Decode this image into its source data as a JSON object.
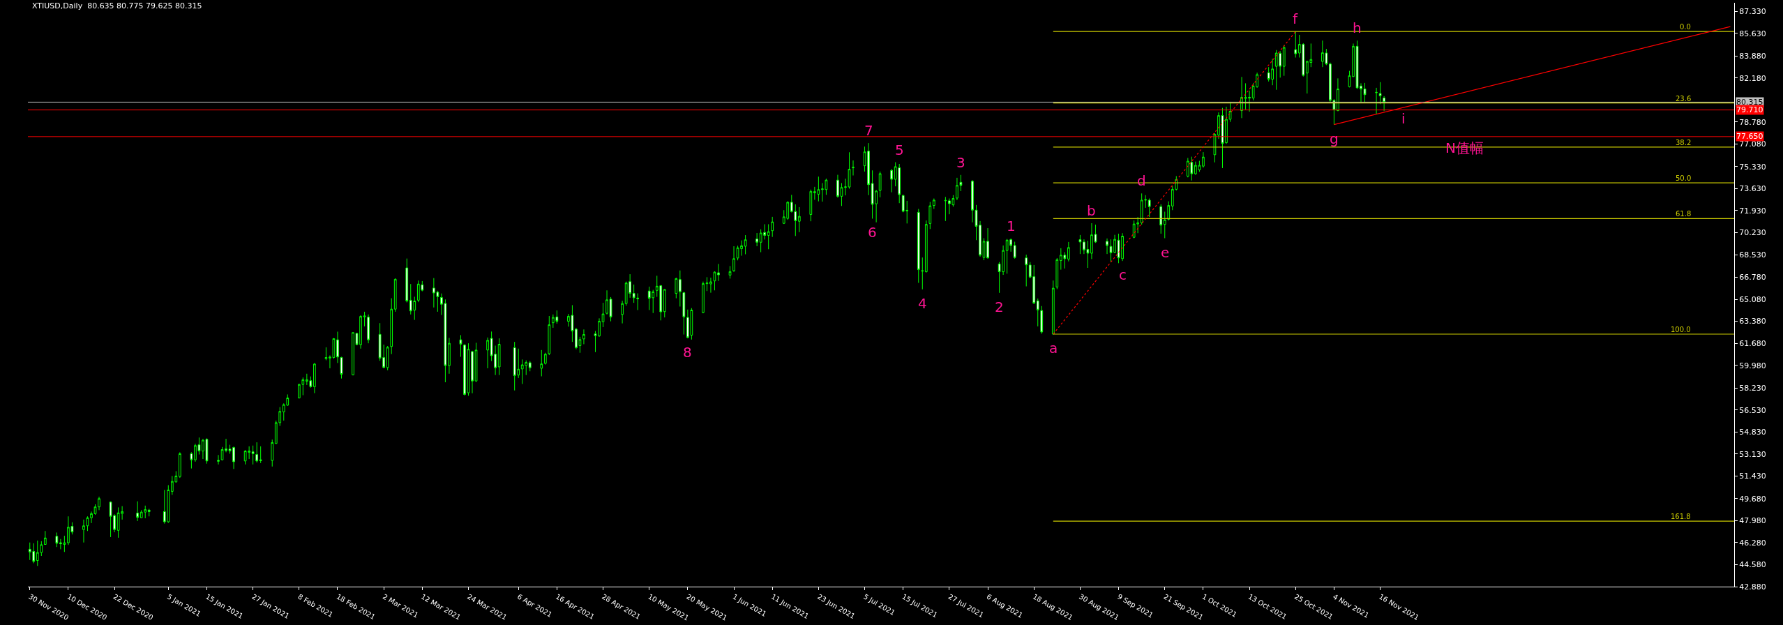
{
  "chart_data": {
    "type": "candlestick",
    "title": "XTIUSD,Daily  80.635 80.775 79.625 80.315",
    "color": "#00ff00",
    "x": [
      "2020-11-30",
      "2020-12-01",
      "2020-12-02",
      "2020-12-03",
      "2020-12-04",
      "2020-12-07",
      "2020-12-08",
      "2020-12-09",
      "2020-12-10",
      "2020-12-11",
      "2020-12-14",
      "2020-12-15",
      "2020-12-16",
      "2020-12-17",
      "2020-12-18",
      "2020-12-21",
      "2020-12-22",
      "2020-12-23",
      "2020-12-24",
      "2020-12-28",
      "2020-12-29",
      "2020-12-30",
      "2020-12-31",
      "2021-01-04",
      "2021-01-05",
      "2021-01-06",
      "2021-01-07",
      "2021-01-08",
      "2021-01-11",
      "2021-01-12",
      "2021-01-13",
      "2021-01-14",
      "2021-01-15",
      "2021-01-18",
      "2021-01-19",
      "2021-01-20",
      "2021-01-21",
      "2021-01-22",
      "2021-01-25",
      "2021-01-26",
      "2021-01-27",
      "2021-01-28",
      "2021-01-29",
      "2021-02-01",
      "2021-02-02",
      "2021-02-03",
      "2021-02-04",
      "2021-02-05",
      "2021-02-08",
      "2021-02-09",
      "2021-02-10",
      "2021-02-11",
      "2021-02-12",
      "2021-02-15",
      "2021-02-16",
      "2021-02-17",
      "2021-02-18",
      "2021-02-19",
      "2021-02-22",
      "2021-02-23",
      "2021-02-24",
      "2021-02-25",
      "2021-02-26",
      "2021-03-01",
      "2021-03-02",
      "2021-03-03",
      "2021-03-04",
      "2021-03-05",
      "2021-03-08",
      "2021-03-09",
      "2021-03-10",
      "2021-03-11",
      "2021-03-12",
      "2021-03-15",
      "2021-03-16",
      "2021-03-17",
      "2021-03-18",
      "2021-03-19",
      "2021-03-22",
      "2021-03-23",
      "2021-03-24",
      "2021-03-25",
      "2021-03-26",
      "2021-03-29",
      "2021-03-30",
      "2021-03-31",
      "2021-04-01",
      "2021-04-05",
      "2021-04-06",
      "2021-04-07",
      "2021-04-08",
      "2021-04-09",
      "2021-04-12",
      "2021-04-13",
      "2021-04-14",
      "2021-04-15",
      "2021-04-16",
      "2021-04-19",
      "2021-04-20",
      "2021-04-21",
      "2021-04-22",
      "2021-04-23",
      "2021-04-26",
      "2021-04-27",
      "2021-04-28",
      "2021-04-29",
      "2021-04-30",
      "2021-05-03",
      "2021-05-04",
      "2021-05-05",
      "2021-05-06",
      "2021-05-07",
      "2021-05-10",
      "2021-05-11",
      "2021-05-12",
      "2021-05-13",
      "2021-05-14",
      "2021-05-17",
      "2021-05-18",
      "2021-05-19",
      "2021-05-20",
      "2021-05-21",
      "2021-05-24",
      "2021-05-25",
      "2021-05-26",
      "2021-05-27",
      "2021-05-28",
      "2021-05-31",
      "2021-06-01",
      "2021-06-02",
      "2021-06-03",
      "2021-06-04",
      "2021-06-07",
      "2021-06-08",
      "2021-06-09",
      "2021-06-10",
      "2021-06-11",
      "2021-06-14",
      "2021-06-15",
      "2021-06-16",
      "2021-06-17",
      "2021-06-18",
      "2021-06-21",
      "2021-06-22",
      "2021-06-23",
      "2021-06-24",
      "2021-06-25",
      "2021-06-28",
      "2021-06-29",
      "2021-06-30",
      "2021-07-01",
      "2021-07-02",
      "2021-07-05",
      "2021-07-06",
      "2021-07-07",
      "2021-07-08",
      "2021-07-09",
      "2021-07-12",
      "2021-07-13",
      "2021-07-14",
      "2021-07-15",
      "2021-07-16",
      "2021-07-19",
      "2021-07-20",
      "2021-07-21",
      "2021-07-22",
      "2021-07-23",
      "2021-07-26",
      "2021-07-27",
      "2021-07-28",
      "2021-07-29",
      "2021-07-30",
      "2021-08-02",
      "2021-08-03",
      "2021-08-04",
      "2021-08-05",
      "2021-08-06",
      "2021-08-09",
      "2021-08-10",
      "2021-08-11",
      "2021-08-12",
      "2021-08-13",
      "2021-08-16",
      "2021-08-17",
      "2021-08-18",
      "2021-08-19",
      "2021-08-20",
      "2021-08-23",
      "2021-08-24",
      "2021-08-25",
      "2021-08-26",
      "2021-08-27",
      "2021-08-30",
      "2021-08-31",
      "2021-09-01",
      "2021-09-02",
      "2021-09-03",
      "2021-09-06",
      "2021-09-07",
      "2021-09-08",
      "2021-09-09",
      "2021-09-10",
      "2021-09-13",
      "2021-09-14",
      "2021-09-15",
      "2021-09-16",
      "2021-09-17",
      "2021-09-20",
      "2021-09-21",
      "2021-09-22",
      "2021-09-23",
      "2021-09-24",
      "2021-09-27",
      "2021-09-28",
      "2021-09-29",
      "2021-09-30",
      "2021-10-01",
      "2021-10-04",
      "2021-10-05",
      "2021-10-06",
      "2021-10-07",
      "2021-10-08",
      "2021-10-11",
      "2021-10-12",
      "2021-10-13",
      "2021-10-14",
      "2021-10-15",
      "2021-10-18",
      "2021-10-19",
      "2021-10-20",
      "2021-10-21",
      "2021-10-22",
      "2021-10-25",
      "2021-10-26",
      "2021-10-27",
      "2021-10-28",
      "2021-10-29",
      "2021-11-01",
      "2021-11-02",
      "2021-11-03",
      "2021-11-04",
      "2021-11-05",
      "2021-11-08",
      "2021-11-09",
      "2021-11-10",
      "2021-11-11",
      "2021-11-12",
      "2021-11-15",
      "2021-11-16",
      "2021-11-17"
    ],
    "ohlc": [
      [
        45.77,
        46.29,
        44.94,
        45.56
      ],
      [
        45.6,
        46.23,
        44.69,
        44.83
      ],
      [
        44.9,
        46.44,
        44.48,
        45.52
      ],
      [
        45.52,
        46.39,
        45.25,
        46.12
      ],
      [
        46.14,
        47.18,
        46.14,
        46.64
      ],
      [
        46.77,
        47.06,
        45.94,
        46.23
      ],
      [
        46.27,
        46.56,
        45.77,
        46.19
      ],
      [
        46.14,
        46.81,
        45.56,
        46.27
      ],
      [
        46.27,
        48.31,
        46.1,
        47.47
      ],
      [
        47.54,
        47.85,
        46.91,
        47.1
      ],
      [
        47.29,
        48.06,
        46.29,
        47.58
      ],
      [
        47.58,
        48.31,
        47.18,
        48.2
      ],
      [
        48.2,
        48.68,
        47.79,
        48.52
      ],
      [
        48.52,
        49.24,
        48.43,
        49.04
      ],
      [
        49.04,
        49.83,
        48.79,
        49.68
      ],
      [
        49.41,
        49.47,
        46.71,
        48.31
      ],
      [
        48.37,
        48.47,
        47.08,
        47.29
      ],
      [
        47.23,
        49.0,
        46.66,
        48.58
      ],
      [
        48.52,
        49.1,
        48.06,
        48.68
      ],
      [
        48.56,
        49.47,
        47.95,
        48.23
      ],
      [
        48.2,
        48.79,
        48.16,
        48.64
      ],
      [
        48.64,
        49.14,
        48.16,
        48.83
      ],
      [
        48.79,
        48.89,
        48.31,
        48.68
      ],
      [
        48.68,
        50.35,
        47.75,
        47.89
      ],
      [
        47.89,
        50.72,
        47.81,
        50.35
      ],
      [
        50.24,
        51.43,
        49.97,
        51.01
      ],
      [
        50.97,
        51.8,
        50.93,
        51.43
      ],
      [
        51.39,
        53.26,
        51.28,
        53.15
      ],
      [
        53.15,
        53.26,
        52.01,
        52.68
      ],
      [
        52.68,
        53.92,
        52.53,
        53.78
      ],
      [
        53.84,
        54.4,
        53.09,
        53.36
      ],
      [
        53.36,
        54.3,
        52.74,
        54.19
      ],
      [
        54.26,
        54.34,
        52.38,
        52.59
      ],
      [
        52.64,
        53.05,
        52.32,
        52.57
      ],
      [
        52.68,
        53.67,
        52.63,
        53.47
      ],
      [
        53.53,
        54.3,
        53.26,
        53.4
      ],
      [
        53.51,
        53.84,
        53.15,
        53.36
      ],
      [
        53.63,
        53.7,
        51.97,
        52.53
      ],
      [
        52.59,
        53.42,
        52.32,
        53.36
      ],
      [
        53.26,
        53.72,
        52.74,
        53.36
      ],
      [
        53.3,
        53.78,
        52.32,
        53.15
      ],
      [
        53.09,
        54.03,
        52.47,
        52.59
      ],
      [
        52.68,
        53.72,
        52.43,
        52.61
      ],
      [
        52.63,
        54.24,
        52.16,
        54.01
      ],
      [
        53.94,
        55.71,
        53.92,
        55.55
      ],
      [
        55.55,
        56.75,
        55.3,
        56.42
      ],
      [
        56.38,
        57.04,
        55.71,
        56.94
      ],
      [
        56.9,
        57.73,
        56.85,
        57.46
      ],
      [
        57.46,
        58.56,
        57.42,
        58.5
      ],
      [
        58.5,
        59.04,
        57.67,
        58.87
      ],
      [
        58.75,
        59.33,
        58.46,
        58.87
      ],
      [
        58.79,
        59.12,
        58.25,
        58.33
      ],
      [
        58.33,
        60.16,
        57.83,
        60.08
      ],
      [
        60.5,
        61.37,
        60.37,
        60.58
      ],
      [
        60.54,
        60.75,
        59.75,
        60.62
      ],
      [
        60.58,
        62.08,
        60.5,
        62.04
      ],
      [
        61.95,
        62.58,
        60.16,
        60.62
      ],
      [
        60.58,
        60.64,
        58.96,
        59.29
      ],
      [
        59.25,
        62.53,
        59.2,
        62.51
      ],
      [
        62.45,
        62.5,
        61.54,
        61.58
      ],
      [
        61.58,
        63.85,
        61.27,
        63.76
      ],
      [
        63.72,
        64.12,
        62.99,
        63.8
      ],
      [
        63.7,
        63.91,
        61.68,
        61.95
      ],
      [
        62.37,
        63.24,
        60.33,
        60.54
      ],
      [
        60.58,
        61.58,
        59.75,
        59.81
      ],
      [
        59.81,
        61.47,
        59.6,
        61.37
      ],
      [
        61.43,
        65.16,
        60.85,
        64.32
      ],
      [
        64.32,
        66.7,
        64.12,
        66.63
      ],
      [
        67.51,
        68.23,
        64.84,
        64.95
      ],
      [
        65.01,
        66.26,
        63.91,
        64.18
      ],
      [
        64.24,
        65.28,
        63.49,
        64.95
      ],
      [
        65.01,
        66.53,
        64.86,
        66.26
      ],
      [
        66.2,
        66.49,
        65.7,
        65.78
      ],
      [
        65.95,
        66.72,
        64.45,
        65.57
      ],
      [
        65.63,
        65.74,
        64.12,
        65.28
      ],
      [
        65.22,
        65.53,
        63.87,
        64.7
      ],
      [
        64.76,
        65.07,
        58.67,
        59.96
      ],
      [
        59.96,
        62.1,
        59.33,
        61.68
      ],
      [
        61.95,
        62.31,
        60.64,
        61.62
      ],
      [
        61.54,
        61.62,
        57.65,
        57.73
      ],
      [
        57.86,
        61.68,
        57.63,
        61.22
      ],
      [
        61.04,
        61.11,
        57.82,
        58.77
      ],
      [
        58.77,
        61.72,
        58.7,
        61.16
      ],
      [
        61.16,
        62.13,
        59.75,
        61.91
      ],
      [
        62.06,
        62.59,
        60.31,
        60.72
      ],
      [
        60.84,
        61.5,
        59.23,
        59.79
      ],
      [
        59.86,
        62.06,
        59.23,
        61.61
      ],
      [
        61.34,
        61.79,
        58.04,
        59.18
      ],
      [
        59.23,
        61.27,
        59.0,
        59.68
      ],
      [
        59.7,
        60.43,
        58.54,
        60.02
      ],
      [
        59.97,
        60.36,
        59.23,
        60.2
      ],
      [
        60.18,
        60.31,
        59.52,
        59.79
      ],
      [
        59.75,
        61.16,
        59.13,
        60.09
      ],
      [
        60.13,
        60.95,
        60.04,
        60.84
      ],
      [
        60.88,
        63.79,
        60.77,
        63.11
      ],
      [
        63.27,
        63.91,
        62.88,
        63.68
      ],
      [
        63.72,
        64.22,
        63.2,
        63.38
      ],
      [
        63.38,
        63.95,
        62.97,
        63.77
      ],
      [
        63.84,
        64.63,
        61.79,
        62.63
      ],
      [
        62.77,
        62.88,
        61.22,
        61.34
      ],
      [
        61.5,
        62.18,
        60.95,
        61.97
      ],
      [
        62.02,
        62.75,
        61.61,
        62.36
      ],
      [
        62.41,
        62.63,
        61.0,
        62.27
      ],
      [
        62.25,
        63.61,
        62.18,
        63.38
      ],
      [
        63.34,
        64.81,
        62.93,
        63.95
      ],
      [
        64.0,
        65.77,
        63.91,
        65.04
      ],
      [
        65.09,
        65.25,
        63.38,
        63.72
      ],
      [
        63.91,
        64.97,
        63.22,
        64.75
      ],
      [
        64.75,
        66.45,
        64.59,
        66.34
      ],
      [
        66.45,
        67.02,
        65.2,
        65.54
      ],
      [
        65.54,
        66.22,
        64.81,
        65.2
      ],
      [
        65.18,
        65.54,
        64.25,
        65.13
      ],
      [
        65.72,
        66.06,
        64.25,
        65.16
      ],
      [
        65.2,
        65.81,
        64.02,
        65.66
      ],
      [
        65.77,
        66.9,
        65.27,
        66.09
      ],
      [
        66.13,
        66.18,
        63.45,
        64.11
      ],
      [
        64.13,
        65.88,
        63.68,
        65.84
      ],
      [
        65.54,
        66.75,
        65.16,
        66.68
      ],
      [
        66.61,
        67.31,
        64.52,
        65.66
      ],
      [
        65.59,
        65.66,
        62.36,
        63.72
      ],
      [
        63.68,
        64.29,
        62.06,
        62.13
      ],
      [
        62.31,
        64.4,
        61.97,
        64.25
      ],
      [
        64.06,
        66.45,
        64.0,
        66.29
      ],
      [
        66.29,
        66.79,
        65.72,
        66.34
      ],
      [
        66.27,
        66.75,
        65.59,
        66.43
      ],
      [
        66.5,
        67.24,
        65.77,
        67.18
      ],
      [
        67.13,
        67.81,
        66.5,
        66.97
      ],
      [
        66.95,
        67.65,
        66.68,
        67.22
      ],
      [
        67.29,
        69.18,
        67.2,
        68.22
      ],
      [
        68.27,
        69.22,
        68.09,
        69.06
      ],
      [
        68.99,
        69.63,
        68.45,
        69.22
      ],
      [
        69.18,
        70.04,
        68.56,
        69.68
      ],
      [
        69.74,
        70.2,
        69.18,
        69.49
      ],
      [
        69.49,
        70.49,
        68.72,
        70.2
      ],
      [
        70.24,
        70.88,
        69.7,
        70.02
      ],
      [
        70.02,
        70.88,
        68.95,
        70.31
      ],
      [
        70.38,
        71.45,
        69.9,
        71.06
      ],
      [
        70.95,
        71.97,
        70.9,
        71.45
      ],
      [
        71.33,
        72.65,
        71.22,
        72.58
      ],
      [
        72.58,
        73.15,
        71.79,
        71.86
      ],
      [
        71.86,
        72.42,
        69.97,
        71.15
      ],
      [
        71.11,
        72.2,
        70.27,
        71.49
      ],
      [
        71.63,
        73.56,
        71.11,
        73.42
      ],
      [
        73.31,
        73.77,
        72.77,
        73.4
      ],
      [
        73.2,
        74.56,
        72.65,
        73.56
      ],
      [
        73.56,
        74.06,
        72.63,
        73.61
      ],
      [
        73.56,
        74.4,
        73.15,
        74.29
      ],
      [
        74.29,
        74.7,
        72.93,
        73.04
      ],
      [
        73.04,
        74.06,
        72.29,
        73.72
      ],
      [
        73.72,
        74.4,
        73.11,
        73.77
      ],
      [
        73.76,
        76.44,
        73.63,
        75.13
      ],
      [
        75.24,
        75.81,
        74.65,
        75.28
      ],
      [
        75.4,
        76.88,
        74.95,
        76.47
      ],
      [
        76.53,
        77.15,
        73.13,
        73.94
      ],
      [
        74.03,
        75.04,
        71.31,
        72.42
      ],
      [
        72.46,
        73.53,
        71.03,
        73.44
      ],
      [
        73.49,
        74.95,
        72.96,
        74.79
      ],
      [
        75.04,
        75.15,
        73.35,
        74.35
      ],
      [
        74.35,
        75.67,
        73.81,
        75.33
      ],
      [
        75.24,
        75.54,
        72.51,
        73.17
      ],
      [
        73.1,
        73.17,
        71.8,
        71.88
      ],
      [
        71.96,
        72.69,
        70.94,
        71.92
      ],
      [
        71.8,
        72.06,
        66.35,
        67.37
      ],
      [
        67.3,
        68.31,
        65.85,
        67.26
      ],
      [
        67.21,
        71.17,
        67.15,
        70.87
      ],
      [
        70.94,
        72.6,
        70.51,
        72.3
      ],
      [
        72.33,
        72.87,
        72.06,
        72.74
      ],
      [
        72.69,
        72.99,
        71.13,
        72.72
      ],
      [
        72.69,
        72.87,
        71.65,
        72.47
      ],
      [
        72.38,
        73.13,
        72.24,
        72.87
      ],
      [
        72.9,
        74.47,
        72.74,
        73.88
      ],
      [
        74.12,
        74.69,
        73.44,
        73.88
      ],
      [
        74.2,
        74.29,
        71.03,
        71.97
      ],
      [
        71.97,
        72.37,
        69.65,
        70.72
      ],
      [
        70.81,
        71.13,
        68.37,
        68.49
      ],
      [
        68.31,
        69.8,
        68.1,
        69.56
      ],
      [
        69.56,
        70.58,
        68.22,
        68.28
      ],
      [
        67.81,
        67.96,
        65.58,
        67.21
      ],
      [
        67.21,
        69.24,
        66.97,
        68.85
      ],
      [
        68.85,
        69.74,
        67.06,
        69.65
      ],
      [
        69.69,
        69.78,
        68.76,
        69.24
      ],
      [
        69.24,
        69.53,
        68.22,
        68.31
      ],
      [
        68.28,
        68.53,
        66.08,
        67.74
      ],
      [
        67.73,
        67.96,
        66.71,
        66.8
      ],
      [
        66.83,
        67.73,
        64.74,
        64.78
      ],
      [
        64.96,
        65.14,
        62.99,
        64.26
      ],
      [
        64.21,
        64.56,
        62.42,
        62.55
      ],
      [
        62.39,
        66.53,
        62.39,
        65.94
      ],
      [
        66.03,
        68.26,
        65.87,
        68.14
      ],
      [
        68.08,
        69.03,
        67.37,
        68.49
      ],
      [
        68.49,
        68.72,
        67.46,
        68.22
      ],
      [
        68.19,
        69.51,
        68.01,
        69.08
      ],
      [
        69.69,
        70.05,
        68.58,
        69.51
      ],
      [
        69.51,
        69.71,
        68.58,
        68.9
      ],
      [
        68.94,
        69.6,
        67.51,
        68.64
      ],
      [
        68.64,
        70.96,
        68.19,
        70.06
      ],
      [
        70.1,
        70.85,
        69.44,
        69.51
      ],
      [
        69.56,
        69.78,
        68.58,
        69.24
      ],
      [
        69.17,
        69.71,
        67.96,
        68.67
      ],
      [
        68.71,
        70.06,
        68.64,
        69.71
      ],
      [
        69.65,
        70.15,
        67.87,
        68.28
      ],
      [
        68.22,
        70.19,
        68.04,
        69.96
      ],
      [
        69.87,
        71.17,
        69.8,
        70.9
      ],
      [
        70.9,
        71.44,
        70.19,
        70.99
      ],
      [
        70.99,
        73.26,
        70.85,
        72.74
      ],
      [
        72.74,
        73.13,
        72.15,
        72.78
      ],
      [
        72.74,
        72.87,
        71.44,
        72.24
      ],
      [
        72.24,
        72.42,
        70.15,
        70.81
      ],
      [
        70.87,
        71.85,
        69.8,
        71.22
      ],
      [
        71.26,
        72.65,
        71.17,
        72.33
      ],
      [
        72.29,
        73.85,
        71.97,
        73.58
      ],
      [
        73.58,
        74.6,
        73.49,
        74.33
      ],
      [
        74.6,
        76.0,
        74.5,
        75.75
      ],
      [
        75.66,
        76.1,
        74.26,
        74.78
      ],
      [
        74.78,
        75.72,
        74.7,
        75.43
      ],
      [
        75.08,
        75.78,
        74.93,
        75.43
      ],
      [
        75.37,
        76.45,
        75.25,
        76.07
      ],
      [
        76.25,
        77.91,
        75.66,
        77.82
      ],
      [
        77.76,
        79.52,
        77.47,
        79.28
      ],
      [
        79.28,
        79.87,
        75.22,
        77.12
      ],
      [
        77.18,
        79.96,
        77.09,
        78.99
      ],
      [
        78.99,
        80.34,
        78.79,
        79.61
      ],
      [
        79.66,
        82.26,
        79.08,
        80.69
      ],
      [
        80.6,
        81.77,
        79.75,
        80.69
      ],
      [
        80.69,
        81.21,
        79.58,
        80.63
      ],
      [
        80.63,
        81.8,
        80.45,
        81.56
      ],
      [
        81.51,
        82.59,
        81.42,
        82.44
      ],
      [
        82.59,
        83.02,
        81.91,
        82.09
      ],
      [
        82.09,
        83.67,
        81.62,
        82.88
      ],
      [
        83.08,
        84.34,
        81.27,
        84.11
      ],
      [
        84.08,
        84.25,
        82.21,
        83.08
      ],
      [
        83.08,
        84.72,
        82.35,
        84.54
      ],
      [
        84.37,
        85.77,
        83.76,
        84.05
      ],
      [
        84.11,
        85.51,
        83.76,
        84.78
      ],
      [
        84.78,
        84.87,
        82.29,
        82.38
      ],
      [
        82.56,
        83.52,
        80.98,
        83.46
      ],
      [
        83.38,
        84.84,
        83.02,
        83.61
      ],
      [
        83.46,
        85.07,
        83.02,
        84.13
      ],
      [
        84.11,
        84.43,
        83.17,
        83.26
      ],
      [
        83.26,
        83.37,
        80.33,
        80.45
      ],
      [
        80.45,
        80.54,
        78.58,
        79.72
      ],
      [
        79.66,
        82.15,
        79.61,
        81.33
      ],
      [
        81.51,
        82.73,
        81.45,
        82.35
      ],
      [
        82.29,
        84.84,
        82.26,
        84.63
      ],
      [
        84.63,
        85.07,
        81.33,
        81.42
      ],
      [
        81.56,
        81.77,
        80.33,
        81.33
      ],
      [
        81.33,
        81.8,
        80.31,
        80.89
      ],
      [
        81.04,
        81.42,
        79.37,
        81.07
      ],
      [
        80.98,
        81.86,
        80.16,
        80.8
      ],
      [
        80.635,
        80.775,
        79.625,
        80.315
      ]
    ],
    "series": [
      {
        "type": "line",
        "name": "0.0",
        "color": "#cccc00",
        "x": [
          "2021-08-23",
          "2022-02-16"
        ],
        "values": [
          85.77,
          85.77
        ]
      },
      {
        "type": "line",
        "name": "23.6",
        "color": "#cccc00",
        "x": [
          "2021-08-23",
          "2022-02-16"
        ],
        "values": [
          80.25,
          80.25
        ]
      },
      {
        "type": "line",
        "name": "38.2",
        "color": "#cccc00",
        "x": [
          "2021-08-23",
          "2022-02-16"
        ],
        "values": [
          76.84,
          76.84
        ]
      },
      {
        "type": "line",
        "name": "50.0",
        "color": "#cccc00",
        "x": [
          "2021-08-23",
          "2022-02-16"
        ],
        "values": [
          74.08,
          74.08
        ]
      },
      {
        "type": "line",
        "name": "61.8",
        "color": "#cccc00",
        "x": [
          "2021-08-23",
          "2022-02-16"
        ],
        "values": [
          71.32,
          71.32
        ]
      },
      {
        "type": "line",
        "name": "100.0",
        "color": "#cccc00",
        "x": [
          "2021-08-23",
          "2022-02-16"
        ],
        "values": [
          62.39,
          62.39
        ]
      },
      {
        "type": "line",
        "name": "161.8",
        "color": "#cccc00",
        "x": [
          "2021-08-23",
          "2022-02-16"
        ],
        "values": [
          47.94,
          47.94
        ]
      },
      {
        "type": "line",
        "color": "#ff0000",
        "line_style": "dotted",
        "x": [
          "2021-08-23",
          "2021-10-25"
        ],
        "values": [
          62.39,
          85.77
        ]
      },
      {
        "type": "line",
        "color": "#ff0000",
        "x": [
          "2021-11-04",
          "2022-02-15"
        ],
        "values": [
          78.58,
          86.15
        ]
      }
    ],
    "ref_lines": [
      {
        "axis": "y",
        "value": 80.315,
        "label": "80.315",
        "color": "#c0c0c0"
      },
      {
        "axis": "y",
        "value": 79.71,
        "label": "79.710",
        "color": "#ff0000"
      },
      {
        "axis": "y",
        "value": 77.65,
        "label": "77.650",
        "color": "#ff0000"
      }
    ],
    "annotations": [
      {
        "text": "8",
        "x": "2021-05-20",
        "y": 62.06
      },
      {
        "text": "7",
        "x": "2021-07-06",
        "y": 77.15
      },
      {
        "text": "6",
        "x": "2021-07-07",
        "y": 71.31
      },
      {
        "text": "5",
        "x": "2021-07-14",
        "y": 75.67
      },
      {
        "text": "4",
        "x": "2021-07-20",
        "y": 65.85
      },
      {
        "text": "3",
        "x": "2021-07-30",
        "y": 74.69
      },
      {
        "text": "2",
        "x": "2021-08-09",
        "y": 65.58
      },
      {
        "text": "1",
        "x": "2021-08-12",
        "y": 69.78
      },
      {
        "text": "a",
        "x": "2021-08-23",
        "y": 62.39
      },
      {
        "text": "b",
        "x": "2021-09-02",
        "y": 70.96
      },
      {
        "text": "c",
        "x": "2021-09-10",
        "y": 68.04
      },
      {
        "text": "d",
        "x": "2021-09-15",
        "y": 73.26
      },
      {
        "text": "e",
        "x": "2021-09-21",
        "y": 69.8
      },
      {
        "text": "f",
        "x": "2021-10-25",
        "y": 85.77
      },
      {
        "text": "g",
        "x": "2021-11-04",
        "y": 78.58
      },
      {
        "text": "h",
        "x": "2021-11-10",
        "y": 85.07
      },
      {
        "text": "i",
        "x": "2021-11-22",
        "y": 79.9
      },
      {
        "text": "N值幅",
        "x": "2021-12-08",
        "y": 77.65
      }
    ],
    "xlim": [
      "2020-11-29T12:00",
      "2022-02-16"
    ],
    "xticks": [
      {
        "value": "2020-11-30",
        "label": "30 Nov 2020"
      },
      {
        "value": "2020-12-10",
        "label": "10 Dec 2020"
      },
      {
        "value": "2020-12-22",
        "label": "22 Dec 2020"
      },
      {
        "value": "2021-01-05",
        "label": "5 Jan 2021"
      },
      {
        "value": "2021-01-15",
        "label": "15 Jan 2021"
      },
      {
        "value": "2021-01-27",
        "label": "27 Jan 2021"
      },
      {
        "value": "2021-02-08",
        "label": "8 Feb 2021"
      },
      {
        "value": "2021-02-18",
        "label": "18 Feb 2021"
      },
      {
        "value": "2021-03-02",
        "label": "2 Mar 2021"
      },
      {
        "value": "2021-03-12",
        "label": "12 Mar 2021"
      },
      {
        "value": "2021-03-24",
        "label": "24 Mar 2021"
      },
      {
        "value": "2021-04-06",
        "label": "6 Apr 2021"
      },
      {
        "value": "2021-04-16",
        "label": "16 Apr 2021"
      },
      {
        "value": "2021-04-28",
        "label": "28 Apr 2021"
      },
      {
        "value": "2021-05-10",
        "label": "10 May 2021"
      },
      {
        "value": "2021-05-20",
        "label": "20 May 2021"
      },
      {
        "value": "2021-06-01",
        "label": "1 Jun 2021"
      },
      {
        "value": "2021-06-11",
        "label": "11 Jun 2021"
      },
      {
        "value": "2021-06-23",
        "label": "23 Jun 2021"
      },
      {
        "value": "2021-07-05",
        "label": "5 Jul 2021"
      },
      {
        "value": "2021-07-15",
        "label": "15 Jul 2021"
      },
      {
        "value": "2021-07-27",
        "label": "27 Jul 2021"
      },
      {
        "value": "2021-08-06",
        "label": "6 Aug 2021"
      },
      {
        "value": "2021-08-18",
        "label": "18 Aug 2021"
      },
      {
        "value": "2021-08-30",
        "label": "30 Aug 2021"
      },
      {
        "value": "2021-09-09",
        "label": "9 Sep 2021"
      },
      {
        "value": "2021-09-21",
        "label": "21 Sep 2021"
      },
      {
        "value": "2021-10-01",
        "label": "1 Oct 2021"
      },
      {
        "value": "2021-10-13",
        "label": "13 Oct 2021"
      },
      {
        "value": "2021-10-25",
        "label": "25 Oct 2021"
      },
      {
        "value": "2021-11-04",
        "label": "4 Nov 2021"
      },
      {
        "value": "2021-11-16",
        "label": "16 Nov 2021"
      }
    ],
    "ylim": [
      42.88,
      87.99
    ],
    "yticks": [
      {
        "value": 87.33,
        "label": "87.330"
      },
      {
        "value": 85.63,
        "label": "85.630"
      },
      {
        "value": 83.88,
        "label": "83.880"
      },
      {
        "value": 82.18,
        "label": "82.180"
      },
      {
        "value": 78.78,
        "label": "78.780"
      },
      {
        "value": 77.08,
        "label": "77.080"
      },
      {
        "value": 75.33,
        "label": "75.330"
      },
      {
        "value": 73.63,
        "label": "73.630"
      },
      {
        "value": 71.93,
        "label": "71.930"
      },
      {
        "value": 70.23,
        "label": "70.230"
      },
      {
        "value": 68.53,
        "label": "68.530"
      },
      {
        "value": 66.78,
        "label": "66.780"
      },
      {
        "value": 65.08,
        "label": "65.080"
      },
      {
        "value": 63.38,
        "label": "63.380"
      },
      {
        "value": 61.68,
        "label": "61.680"
      },
      {
        "value": 59.98,
        "label": "59.980"
      },
      {
        "value": 58.23,
        "label": "58.230"
      },
      {
        "value": 56.53,
        "label": "56.530"
      },
      {
        "value": 54.83,
        "label": "54.830"
      },
      {
        "value": 53.13,
        "label": "53.130"
      },
      {
        "value": 51.43,
        "label": "51.430"
      },
      {
        "value": 49.68,
        "label": "49.680"
      },
      {
        "value": 47.98,
        "label": "47.980"
      },
      {
        "value": 46.28,
        "label": "46.280"
      },
      {
        "value": 44.58,
        "label": "44.580"
      },
      {
        "value": 42.88,
        "label": "42.880"
      }
    ],
    "grid": false
  }
}
